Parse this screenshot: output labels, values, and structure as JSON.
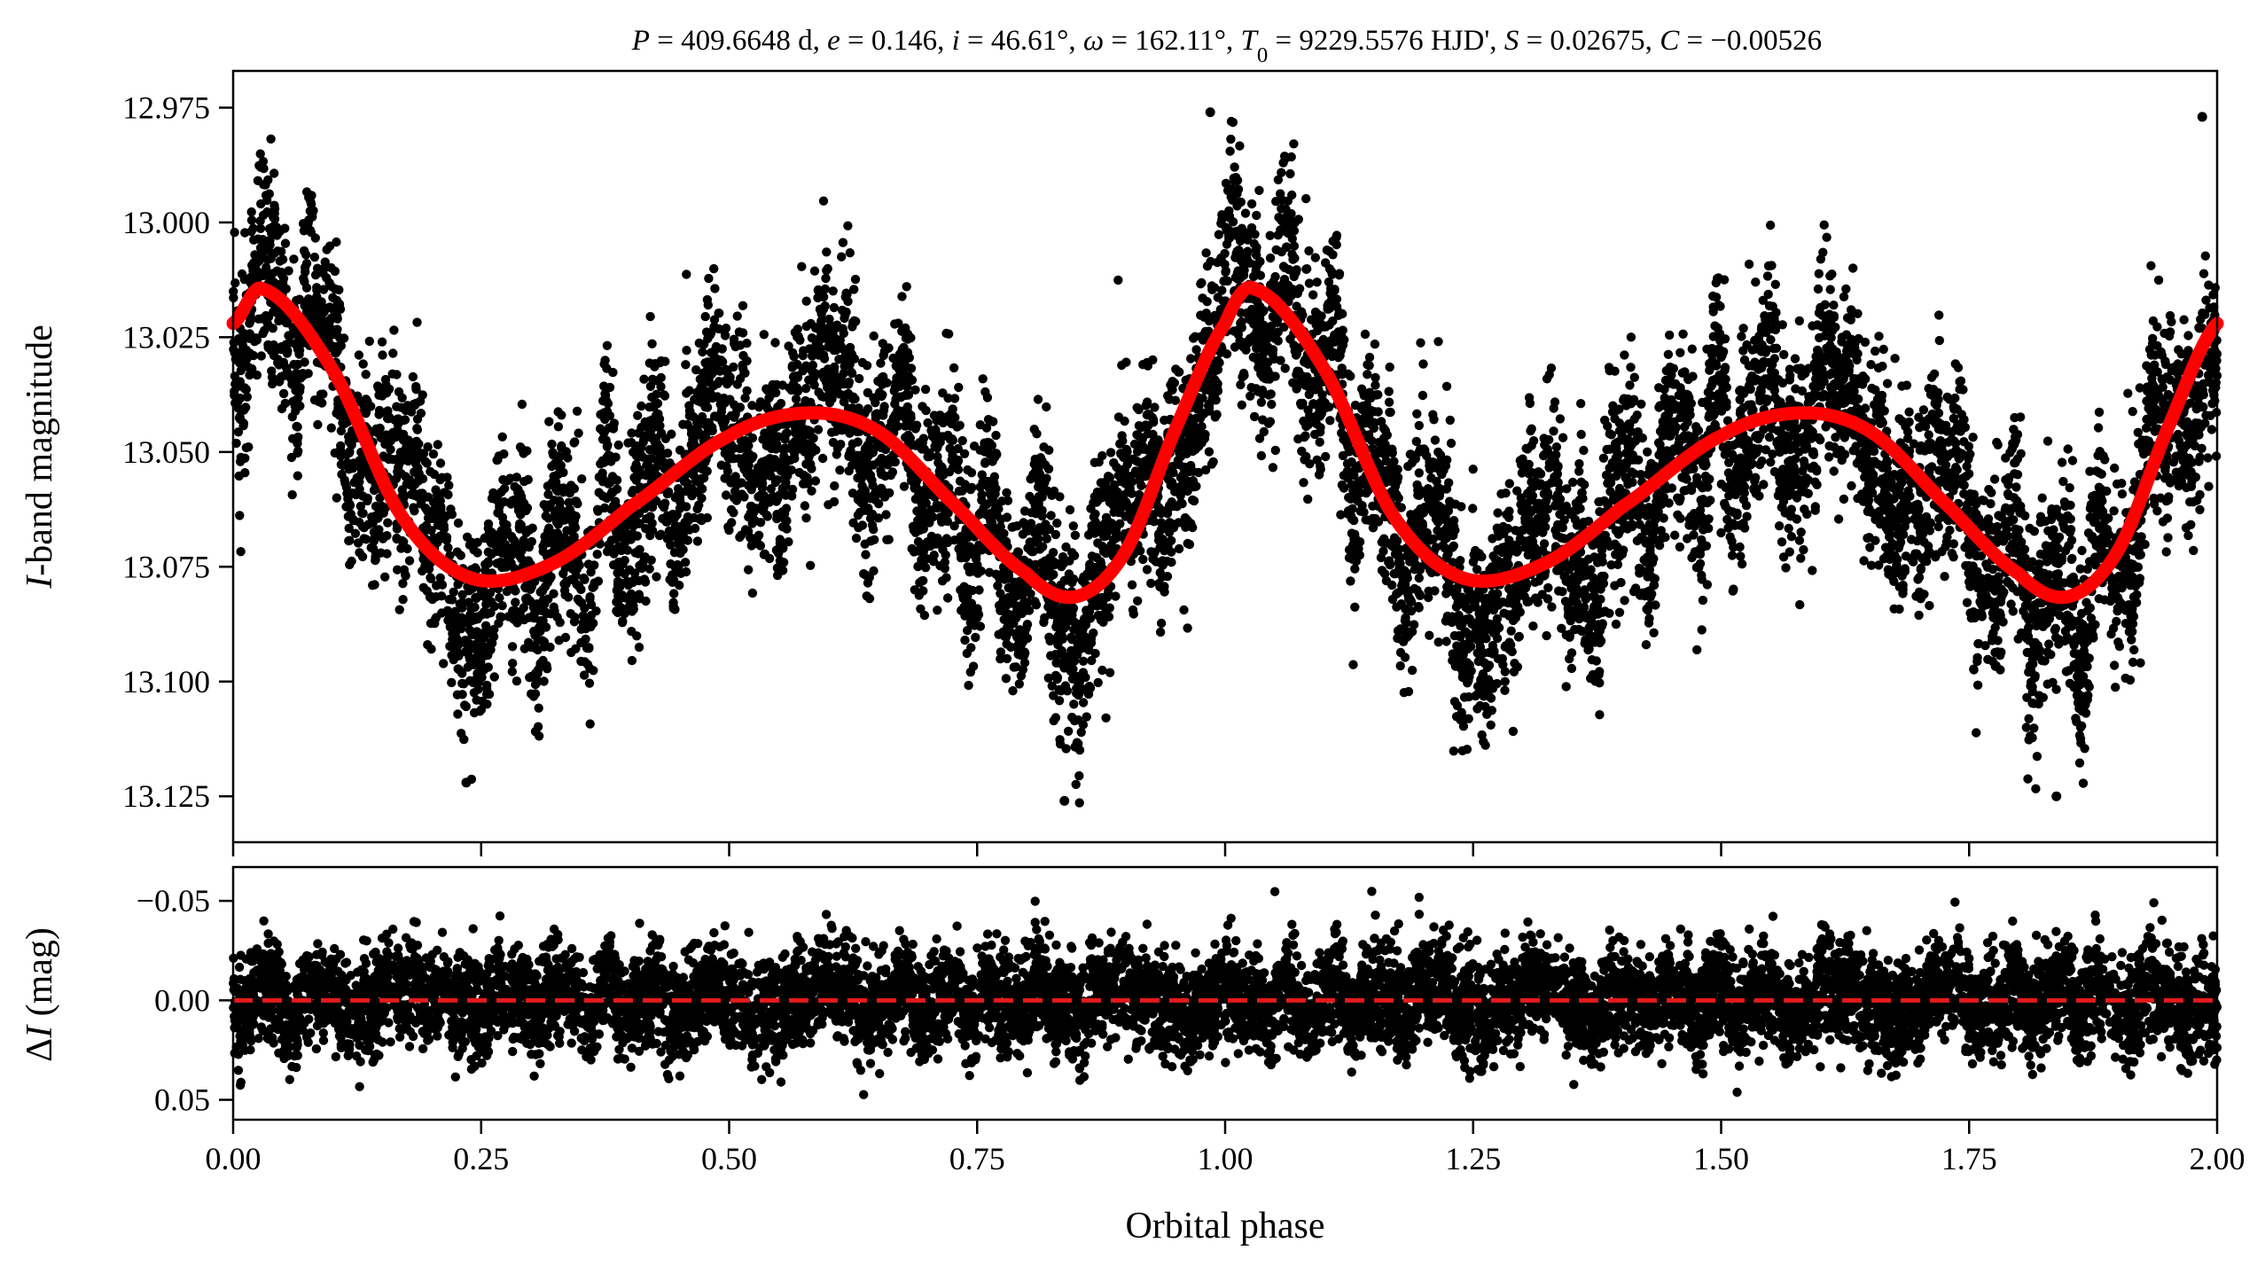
{
  "chart_data": [
    {
      "type": "scatter",
      "panel": "top",
      "title_parts": [
        {
          "text": "P",
          "italic": true
        },
        {
          "text": " = 409.6648 d, ",
          "italic": false
        },
        {
          "text": "e",
          "italic": true
        },
        {
          "text": " = 0.146, ",
          "italic": false
        },
        {
          "text": "i",
          "italic": true
        },
        {
          "text": " = 46.61°, ",
          "italic": false
        },
        {
          "text": "ω",
          "italic": true
        },
        {
          "text": " = 162.11°, ",
          "italic": false
        },
        {
          "text": "T",
          "italic": true
        },
        {
          "text": "0",
          "italic": false,
          "sub": true
        },
        {
          "text": " = 9229.5576 HJD', ",
          "italic": false
        },
        {
          "text": "S",
          "italic": true
        },
        {
          "text": " = 0.02675, ",
          "italic": false
        },
        {
          "text": "C",
          "italic": true
        },
        {
          "text": " = −0.00526",
          "italic": false
        }
      ],
      "ylabel_parts": [
        {
          "text": "I",
          "italic": true
        },
        {
          "text": "-band magnitude",
          "italic": false
        }
      ],
      "ylim": [
        13.135,
        12.967
      ],
      "y_inverted": true,
      "yticks": [
        "12.975",
        "13.000",
        "13.025",
        "13.050",
        "13.075",
        "13.100",
        "13.125"
      ],
      "xlim": [
        0.0,
        2.0
      ],
      "data_color": "#000000",
      "model_color": "#ff0000",
      "model_curve": {
        "name": "orbital model",
        "x": [
          0.0,
          0.03,
          0.1,
          0.17,
          0.24,
          0.32,
          0.4,
          0.5,
          0.58,
          0.65,
          0.72,
          0.8,
          0.85,
          0.9,
          0.95,
          1.0,
          1.03,
          1.1,
          1.17,
          1.24,
          1.32,
          1.4,
          1.5,
          1.58,
          1.65,
          1.72,
          1.8,
          1.85,
          1.9,
          1.95,
          2.0
        ],
        "y": [
          13.022,
          13.0145,
          13.032,
          13.064,
          13.0775,
          13.0745,
          13.062,
          13.0465,
          13.0415,
          13.0455,
          13.06,
          13.0765,
          13.0815,
          13.0715,
          13.045,
          13.022,
          13.0145,
          13.032,
          13.064,
          13.0775,
          13.0745,
          13.062,
          13.0465,
          13.0415,
          13.0455,
          13.06,
          13.0765,
          13.0815,
          13.0715,
          13.045,
          13.022
        ]
      },
      "observations": {
        "description_count": 9000,
        "noise_scatter_mag": 0.02,
        "outliers": [
          {
            "x": 0.985,
            "y": 12.976
          },
          {
            "x": 1.985,
            "y": 12.977
          },
          {
            "x": 0.235,
            "y": 13.122
          },
          {
            "x": 0.838,
            "y": 13.126
          },
          {
            "x": 1.838,
            "y": 13.125
          }
        ]
      }
    },
    {
      "type": "scatter",
      "panel": "bottom",
      "ylabel_parts": [
        {
          "text": "Δ",
          "italic": false
        },
        {
          "text": "I",
          "italic": true
        },
        {
          "text": " (mag)",
          "italic": false
        }
      ],
      "ylim": [
        0.06,
        -0.067
      ],
      "y_inverted": true,
      "yticks": [
        "−0.05",
        "0.00",
        "0.05"
      ],
      "xlabel": "Orbital phase",
      "xlim": [
        0.0,
        2.0
      ],
      "xticks": [
        "0.00",
        "0.25",
        "0.50",
        "0.75",
        "1.00",
        "1.25",
        "1.50",
        "1.75",
        "2.00"
      ],
      "zero_line": {
        "y": 0.0,
        "style": "dashed",
        "color": "#e41a1c"
      },
      "residual_scatter_mag": 0.03
    }
  ]
}
